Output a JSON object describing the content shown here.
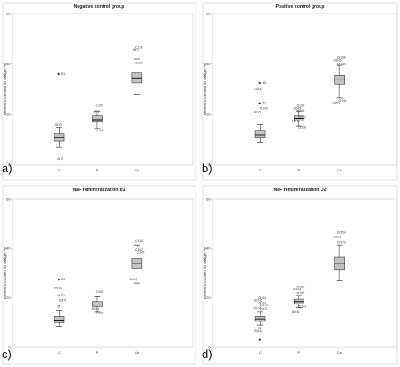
{
  "chart_data": [
    {
      "type": "box",
      "panel_letter": "a)",
      "title": "Negative control group",
      "ylabel": "Element content in weight %",
      "ylim": [
        0,
        60
      ],
      "yticks": [
        0,
        20,
        40,
        60
      ],
      "categories": [
        "C",
        "P",
        "Ca"
      ],
      "boxes": [
        {
          "category": "C",
          "whisker_low": 7,
          "q1": 9.5,
          "median": 11,
          "q3": 12.5,
          "whisker_high": 15,
          "outliers": [
            {
              "value": 36,
              "label": "131",
              "marker": "star"
            },
            {
              "value": 16,
              "label": "35",
              "marker": "circle"
            },
            {
              "value": 2.5,
              "label": "37",
              "marker": "circle"
            }
          ]
        },
        {
          "category": "P",
          "whisker_low": 14.5,
          "q1": 17,
          "median": 18,
          "q3": 19.5,
          "whisker_high": 21.5,
          "outliers": [
            {
              "value": 23.5,
              "label": "110",
              "marker": "circle"
            },
            {
              "value": 21,
              "label": "95",
              "marker": "circle"
            },
            {
              "value": 14,
              "label": "121",
              "marker": "circle"
            }
          ]
        },
        {
          "category": "Ca",
          "whisker_low": 28,
          "q1": 32.5,
          "median": 34.5,
          "q3": 36.5,
          "whisker_high": 42,
          "outliers": [
            {
              "value": 46.5,
              "label": "116",
              "marker": "circle"
            },
            {
              "value": 45.5,
              "label": "98",
              "marker": "circle"
            },
            {
              "value": 40.5,
              "label": "110",
              "marker": "circle"
            }
          ]
        }
      ]
    },
    {
      "type": "box",
      "panel_letter": "b)",
      "title": "Positive control group",
      "ylabel": "Element content in weight %",
      "ylim": [
        0,
        60
      ],
      "yticks": [
        0,
        20,
        40,
        60
      ],
      "categories": [
        "C",
        "P",
        "Ca"
      ],
      "boxes": [
        {
          "category": "C",
          "whisker_low": 9,
          "q1": 11,
          "median": 12,
          "q3": 13.5,
          "whisker_high": 16,
          "outliers": [
            {
              "value": 32.5,
              "label": "145",
              "marker": "star"
            },
            {
              "value": 30,
              "label": "146",
              "marker": "circle"
            },
            {
              "value": 24.5,
              "label": "272",
              "marker": "star"
            },
            {
              "value": 22.5,
              "label": "143",
              "marker": "circle"
            },
            {
              "value": 21,
              "label": "147",
              "marker": "circle"
            }
          ]
        },
        {
          "category": "P",
          "whisker_low": 15.5,
          "q1": 17.5,
          "median": 18.5,
          "q3": 19.5,
          "whisker_high": 21.5,
          "outliers": [
            {
              "value": 23.5,
              "label": "249",
              "marker": "circle"
            },
            {
              "value": 22.5,
              "label": "199",
              "marker": "circle"
            },
            {
              "value": 21.5,
              "label": "106",
              "marker": "circle"
            },
            {
              "value": 19,
              "label": "172",
              "marker": "circle"
            },
            {
              "value": 17.5,
              "label": "136",
              "marker": "circle"
            },
            {
              "value": 15,
              "label": "198",
              "marker": "circle"
            }
          ]
        },
        {
          "category": "Ca",
          "whisker_low": 26.5,
          "q1": 32,
          "median": 34,
          "q3": 35.5,
          "whisker_high": 39.5,
          "outliers": [
            {
              "value": 42.5,
              "label": "286",
              "marker": "circle"
            },
            {
              "value": 41.5,
              "label": "249",
              "marker": "circle"
            },
            {
              "value": 40,
              "label": "249",
              "marker": "circle"
            },
            {
              "value": 25.5,
              "label": "106",
              "marker": "circle"
            },
            {
              "value": 24.5,
              "label": "145",
              "marker": "circle"
            }
          ]
        }
      ]
    },
    {
      "type": "box",
      "panel_letter": "c)",
      "title": "NaF remineralization D1",
      "ylabel": "Element content in weight %",
      "ylim": [
        0,
        60
      ],
      "yticks": [
        0,
        20,
        40,
        60
      ],
      "categories": [
        "C",
        "P",
        "Ca"
      ],
      "boxes": [
        {
          "category": "C",
          "whisker_low": 8.5,
          "q1": 10,
          "median": 11,
          "q3": 12.5,
          "whisker_high": 15,
          "outliers": [
            {
              "value": 27.5,
              "label": "403",
              "marker": "star"
            },
            {
              "value": 24,
              "label": "393",
              "marker": "circle"
            },
            {
              "value": 21,
              "label": "361",
              "marker": "circle"
            },
            {
              "value": 19,
              "label": "371",
              "marker": "circle"
            },
            {
              "value": 16.5,
              "label": "",
              "marker": "circle"
            }
          ]
        },
        {
          "category": "P",
          "whisker_low": 14.5,
          "q1": 16.5,
          "median": 17.5,
          "q3": 18.5,
          "whisker_high": 20.5,
          "outliers": [
            {
              "value": 22.5,
              "label": "402",
              "marker": "circle"
            },
            {
              "value": 15.5,
              "label": "361",
              "marker": "circle"
            },
            {
              "value": 14,
              "label": "022",
              "marker": "circle"
            }
          ]
        },
        {
          "category": "Ca",
          "whisker_low": 26,
          "q1": 32,
          "median": 34,
          "q3": 36,
          "whisker_high": 41.5,
          "outliers": [
            {
              "value": 43,
              "label": "410",
              "marker": "circle"
            },
            {
              "value": 41,
              "label": "",
              "marker": "circle"
            },
            {
              "value": 39.5,
              "label": "402",
              "marker": "circle"
            },
            {
              "value": 38.5,
              "label": "347",
              "marker": "circle"
            },
            {
              "value": 27.5,
              "label": "360",
              "marker": "circle"
            }
          ]
        }
      ]
    },
    {
      "type": "box",
      "panel_letter": "d)",
      "title": "NaF remineralization D2",
      "ylabel": "Element content in weight %",
      "ylim": [
        0,
        60
      ],
      "yticks": [
        0,
        20,
        40,
        60
      ],
      "categories": [
        "C",
        "P",
        "Ca"
      ],
      "boxes": [
        {
          "category": "C",
          "whisker_low": 9,
          "q1": 10.5,
          "median": 11.5,
          "q3": 12.5,
          "whisker_high": 14.5,
          "outliers": [
            {
              "value": 20,
              "label": "533",
              "marker": "circle"
            },
            {
              "value": 19,
              "label": "522",
              "marker": "circle"
            },
            {
              "value": 18,
              "label": "570",
              "marker": "circle"
            },
            {
              "value": 17,
              "label": "573",
              "marker": "circle"
            },
            {
              "value": 16,
              "label": "541",
              "marker": "circle"
            },
            {
              "value": 15.5,
              "label": "571",
              "marker": "circle"
            },
            {
              "value": 8,
              "label": "",
              "marker": "circle"
            },
            {
              "value": 6.5,
              "label": "535",
              "marker": "circle"
            },
            {
              "value": 3,
              "label": "",
              "marker": "star"
            }
          ]
        },
        {
          "category": "P",
          "whisker_low": 16,
          "q1": 17.5,
          "median": 18.5,
          "q3": 19.5,
          "whisker_high": 21,
          "outliers": [
            {
              "value": 24.5,
              "label": "563",
              "marker": "circle"
            },
            {
              "value": 23.5,
              "label": "575",
              "marker": "circle"
            },
            {
              "value": 22,
              "label": "545",
              "marker": "circle"
            },
            {
              "value": 16.5,
              "label": "544",
              "marker": "circle"
            },
            {
              "value": 14.5,
              "label": "509",
              "marker": "circle"
            }
          ]
        },
        {
          "category": "Ca",
          "whisker_low": 27,
          "q1": 31.5,
          "median": 34,
          "q3": 36.5,
          "whisker_high": 41.5,
          "outliers": [
            {
              "value": 46.5,
              "label": "554",
              "marker": "circle"
            },
            {
              "value": 44.5,
              "label": "573",
              "marker": "circle"
            },
            {
              "value": 42.5,
              "label": "573",
              "marker": "circle"
            }
          ]
        }
      ]
    }
  ]
}
